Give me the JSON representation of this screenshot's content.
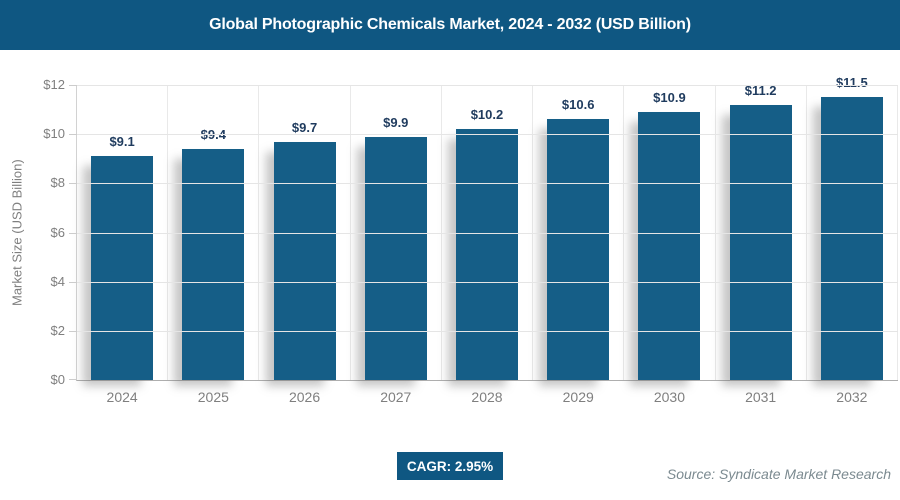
{
  "header": {
    "title": "Global Photographic Chemicals Market, 2024 - 2032 (USD Billion)",
    "bg_color": "#0f5782",
    "text_color": "#ffffff"
  },
  "chart_data": {
    "type": "bar",
    "title": "Global Photographic Chemicals Market, 2024 - 2032 (USD Billion)",
    "categories": [
      "2024",
      "2025",
      "2026",
      "2027",
      "2028",
      "2029",
      "2030",
      "2031",
      "2032"
    ],
    "values": [
      9.1,
      9.4,
      9.7,
      9.9,
      10.2,
      10.6,
      10.9,
      11.2,
      11.5
    ],
    "value_labels": [
      "$9.1",
      "$9.4",
      "$9.7",
      "$9.9",
      "$10.2",
      "$10.6",
      "$10.9",
      "$11.2",
      "$11.5"
    ],
    "xlabel": "",
    "ylabel": "Market Size (USD Billion)",
    "ylim": [
      0,
      12
    ],
    "ytick_step": 2,
    "ytick_labels": [
      "$0",
      "$2",
      "$4",
      "$6",
      "$8",
      "$10",
      "$12"
    ],
    "grid": true,
    "legend": "none",
    "bar_color": "#155e87",
    "value_label_color": "#1f3b5e",
    "axis_text_color": "#7f7f7f",
    "gridline_color": "#e5e5e5"
  },
  "footer": {
    "cagr_label": "CAGR: 2.95%",
    "badge_bg": "#0f5782",
    "source": "Source: Syndicate Market Research",
    "source_color": "#7b8a90"
  }
}
